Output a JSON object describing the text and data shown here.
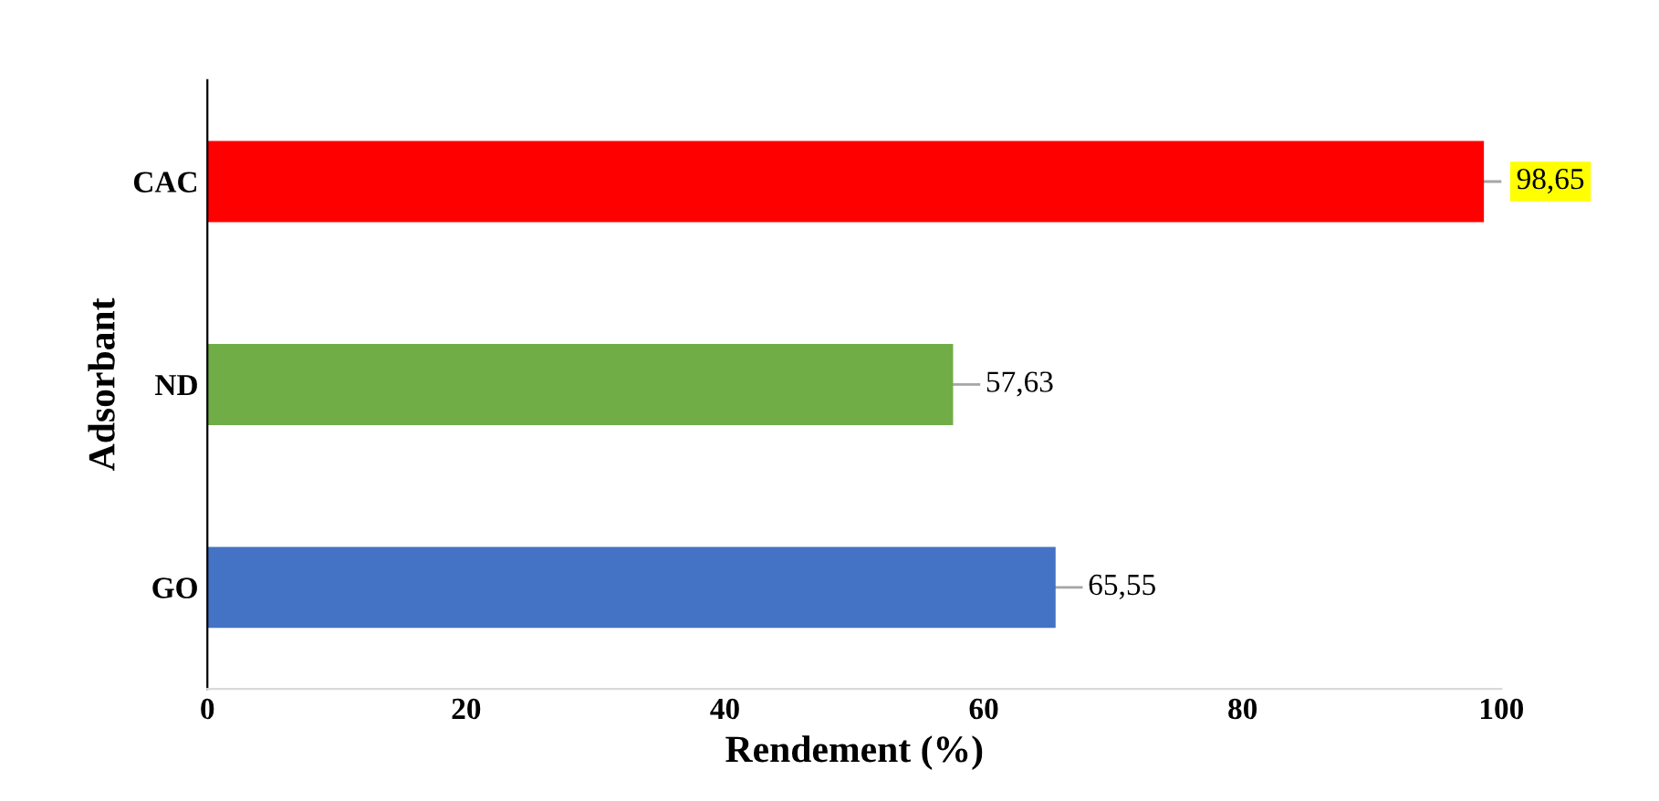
{
  "chart_data": {
    "type": "bar",
    "orientation": "horizontal",
    "categories": [
      "CAC",
      "ND",
      "GO"
    ],
    "values": [
      98.65,
      57.63,
      65.55
    ],
    "colors": [
      "#ff0000",
      "#70ad47",
      "#4472c4"
    ],
    "value_labels": [
      "98,65",
      "57,63",
      "65,55"
    ],
    "xlabel": "Rendement (%)",
    "ylabel": "Adsorbant",
    "xlim": [
      0,
      100
    ],
    "xticks": [
      0,
      20,
      40,
      60,
      80,
      100
    ],
    "grid": false,
    "legend": false
  }
}
